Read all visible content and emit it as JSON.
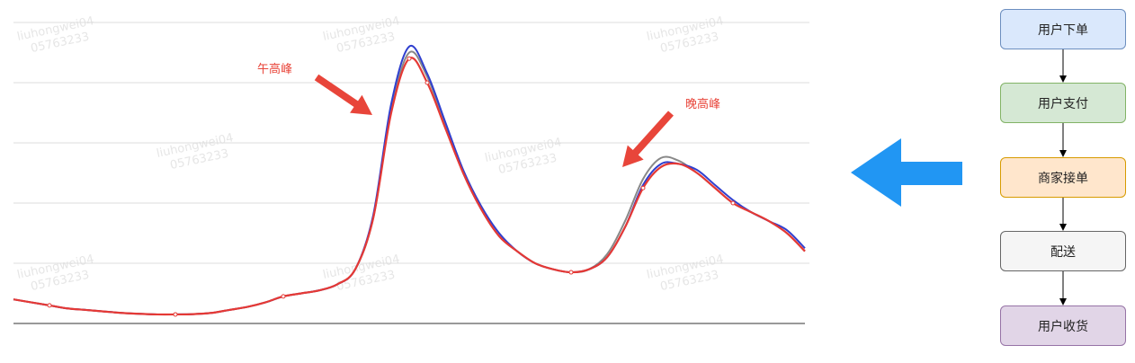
{
  "annotations": {
    "noon_peak": "午高峰",
    "evening_peak": "晚高峰"
  },
  "flow": {
    "steps": [
      {
        "label": "用户下单",
        "fill": "#dae8fc",
        "stroke": "#6c8ebf"
      },
      {
        "label": "用户支付",
        "fill": "#d5e8d4",
        "stroke": "#82b366"
      },
      {
        "label": "商家接单",
        "fill": "#ffe6cc",
        "stroke": "#d79b00"
      },
      {
        "label": "配送",
        "fill": "#f5f5f5",
        "stroke": "#666666"
      },
      {
        "label": "用户收货",
        "fill": "#e1d5e7",
        "stroke": "#9673a6"
      }
    ]
  },
  "colors": {
    "annotation": "#e8453a",
    "arrow_blue": "#2196f3",
    "series_red": "#e53935",
    "series_blue": "#2f3fcf",
    "series_gray": "#888888",
    "grid": "#dddddd"
  },
  "watermark": {
    "lines": [
      "liuhongwei04",
      "05763233"
    ]
  },
  "chart_data": {
    "type": "line",
    "grid": true,
    "x": [
      0,
      1,
      2,
      3,
      4,
      5,
      6,
      7,
      8,
      9,
      10,
      11,
      12,
      13,
      14,
      15,
      16,
      17,
      18,
      19,
      20,
      21,
      22,
      23,
      24,
      25,
      26,
      27,
      28,
      29,
      30,
      31,
      32,
      33,
      34,
      35,
      36,
      37,
      38,
      39,
      40,
      41,
      42,
      43,
      44
    ],
    "series": [
      {
        "color": "#e53935",
        "values": [
          8,
          7,
          6,
          5,
          4.5,
          4,
          3.5,
          3.2,
          3,
          3,
          3.1,
          3.5,
          4.5,
          5.5,
          7,
          9,
          10,
          11,
          13,
          18,
          35,
          70,
          88,
          80,
          65,
          50,
          38,
          29,
          24,
          20,
          18,
          17,
          18,
          22,
          32,
          45,
          52,
          53,
          50,
          45,
          40,
          37,
          34,
          30,
          24
        ]
      },
      {
        "color": "#2f3fcf",
        "values": [
          8,
          7,
          6,
          5,
          4.5,
          4,
          3.5,
          3.2,
          3,
          3,
          3.1,
          3.5,
          4.5,
          5.5,
          7,
          9,
          10,
          11,
          13,
          18,
          36,
          73,
          92,
          83,
          67,
          51,
          39,
          30,
          24,
          20,
          18,
          17,
          18,
          22,
          32,
          46,
          53,
          53,
          51,
          46,
          41,
          37,
          34,
          31,
          25
        ]
      },
      {
        "color": "#888888",
        "values": [
          8,
          7,
          6,
          5,
          4.5,
          4,
          3.5,
          3.2,
          3,
          3,
          3.1,
          3.5,
          4.5,
          5.5,
          7,
          9,
          10,
          11,
          13,
          18,
          35,
          71,
          90,
          82,
          66,
          50,
          38,
          29,
          24,
          20,
          18,
          17,
          18,
          23,
          34,
          48,
          55,
          54,
          50,
          45,
          40,
          37,
          34,
          30,
          24
        ]
      }
    ],
    "ylim": [
      0,
      100
    ]
  }
}
